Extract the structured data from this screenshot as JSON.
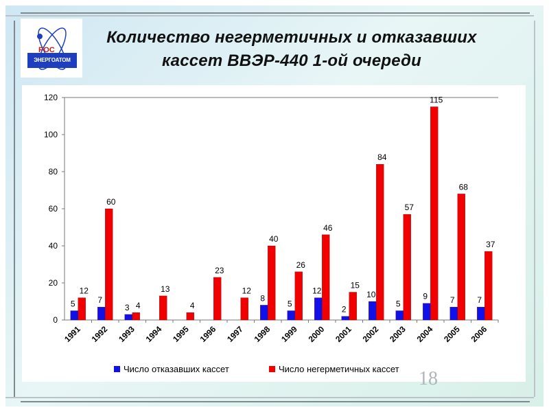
{
  "slide": {
    "title_line1": "Количество негерметичных и отказавших",
    "title_line2": "кассет ВВЭР-440   1-ой очереди",
    "logo_ros": "РОС",
    "logo_text": "ЭНЕРГОАТОМ",
    "page_number": "18"
  },
  "colors": {
    "blue": "#1010e8",
    "red": "#f00000"
  },
  "chart_data": {
    "type": "bar",
    "categories": [
      "1991",
      "1992",
      "1993",
      "1994",
      "1995",
      "1996",
      "1997",
      "1998",
      "1999",
      "2000",
      "2001",
      "2002",
      "2003",
      "2004",
      "2005",
      "2006"
    ],
    "series": [
      {
        "name": "Число отказавших кассет",
        "values": [
          5,
          7,
          3,
          null,
          null,
          null,
          null,
          8,
          5,
          12,
          2,
          10,
          5,
          9,
          7,
          7
        ]
      },
      {
        "name": "Число негерметичных кассет",
        "values": [
          12,
          60,
          4,
          13,
          4,
          23,
          12,
          40,
          26,
          46,
          15,
          84,
          57,
          115,
          68,
          37
        ]
      }
    ],
    "yticks": [
      "0",
      "20",
      "40",
      "60",
      "80",
      "100",
      "120"
    ],
    "ylim": [
      0,
      120
    ],
    "grid": "top-border-only",
    "legend": "bottom"
  }
}
